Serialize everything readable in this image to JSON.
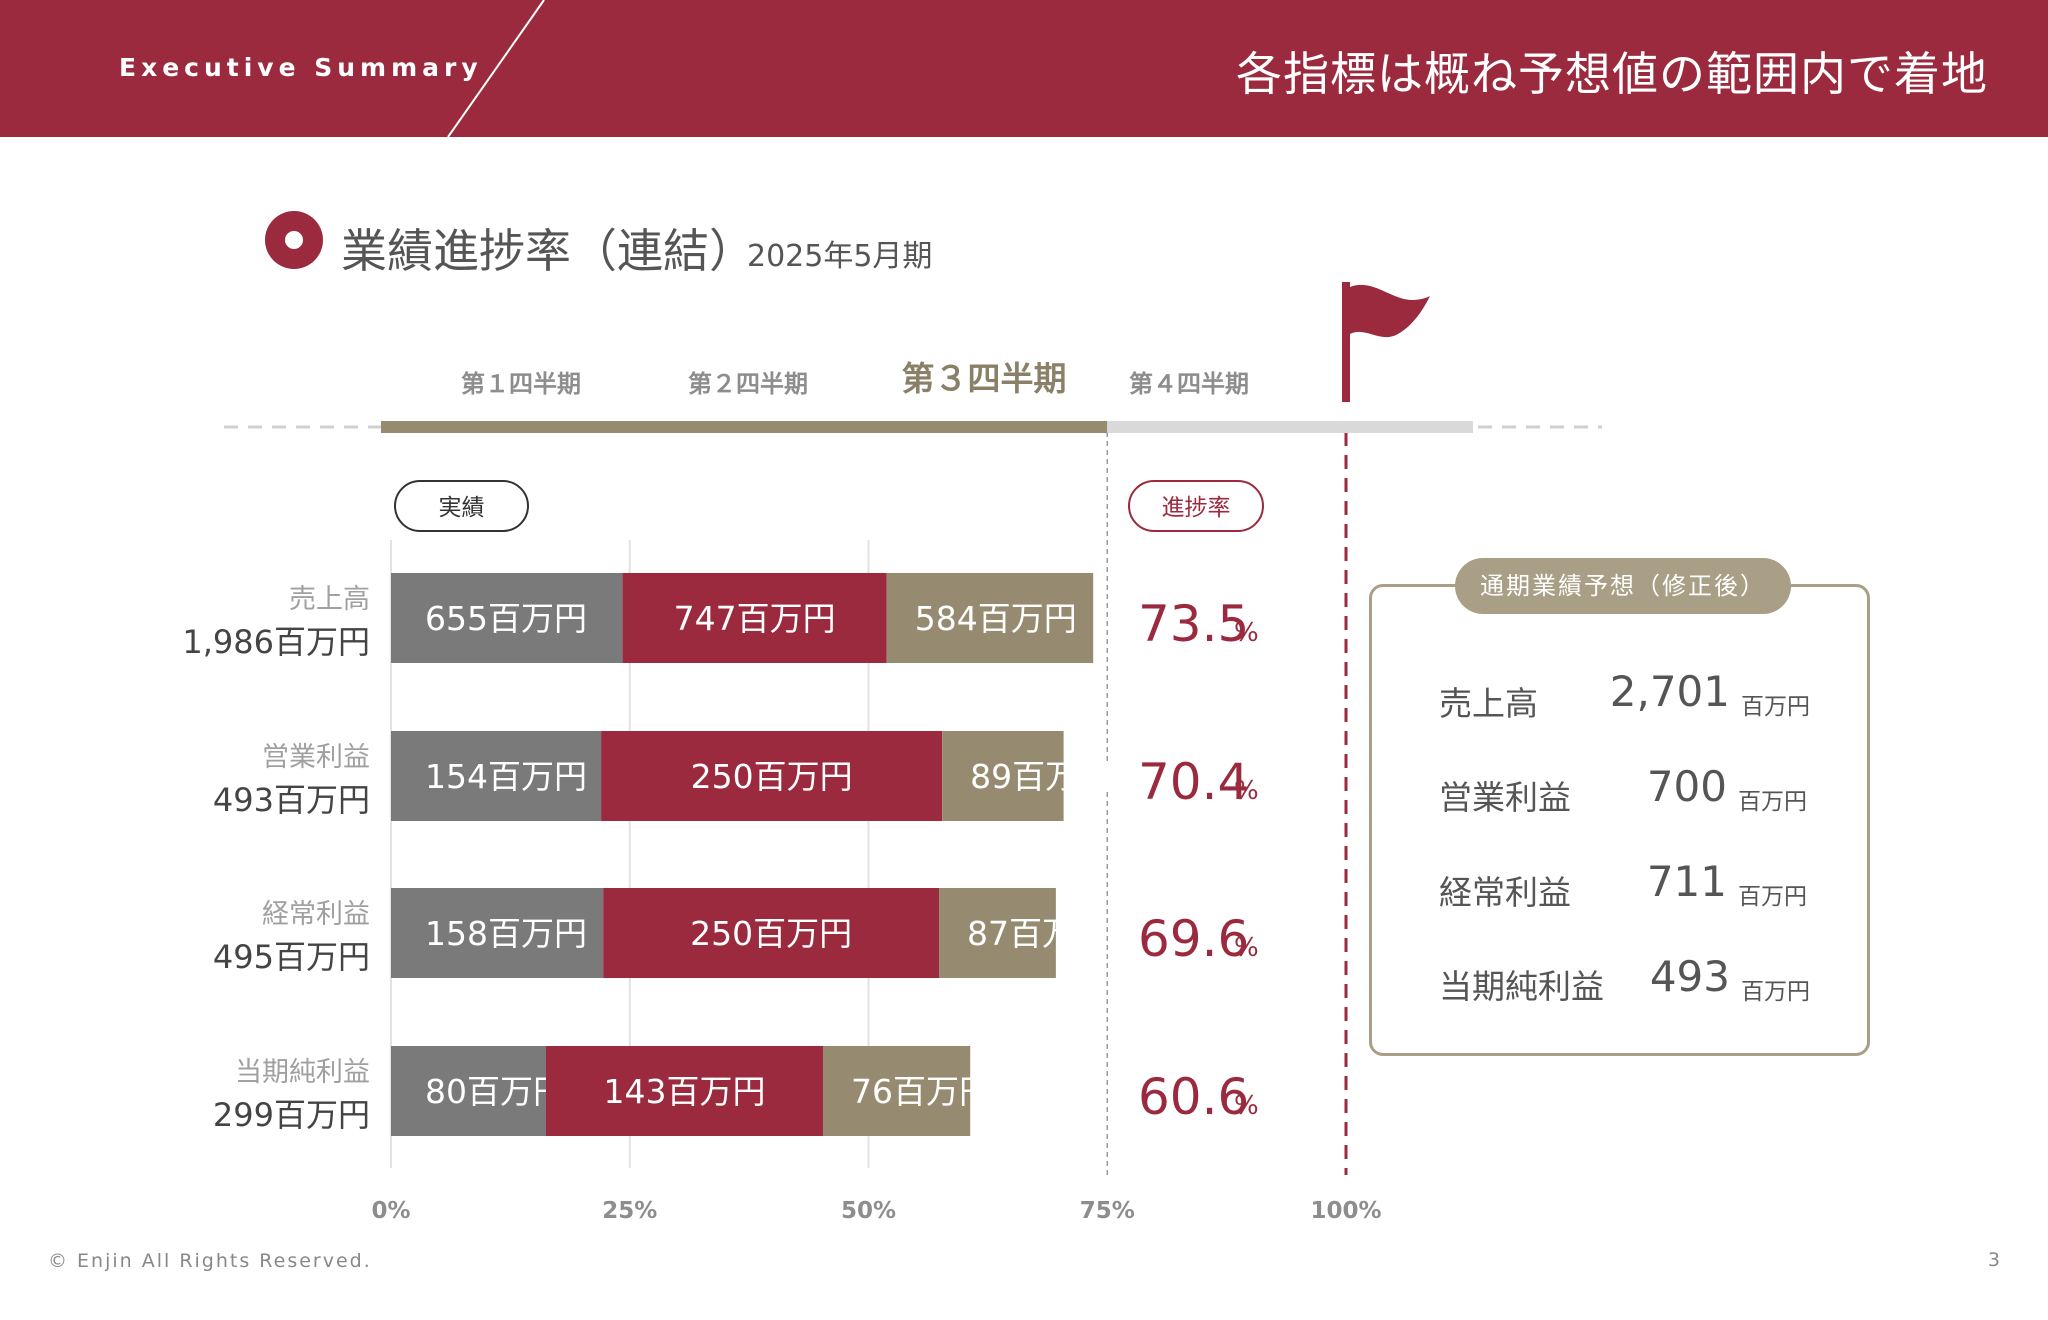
{
  "header": {
    "section": "Executive Summary",
    "headline": "各指標は概ね予想値の範囲内で着地"
  },
  "section_title": {
    "title": "業績進捗率（連結）",
    "period": "2025年5月期"
  },
  "colors": {
    "brand": "#9b2a3e",
    "q1": "#7a7a7a",
    "q2": "#9b2a3e",
    "q3": "#968b71",
    "timeline_remaining": "#d9d9d9"
  },
  "chart_data": {
    "type": "bar",
    "orientation": "horizontal",
    "stacked": true,
    "quarters": [
      "第１四半期",
      "第２四半期",
      "第３四半期",
      "第４四半期"
    ],
    "current_quarter_index": 2,
    "actual_tag": "実績",
    "progress_tag": "進捗率",
    "unit": "百万円",
    "categories": [
      {
        "name": "売上高",
        "total": "1,986百万円",
        "progress": "73.5",
        "values": [
          655,
          747,
          584
        ],
        "target": 2701
      },
      {
        "name": "営業利益",
        "total": "493百万円",
        "progress": "70.4",
        "values": [
          154,
          250,
          89
        ],
        "target": 700
      },
      {
        "name": "経常利益",
        "total": "495百万円",
        "progress": "69.6",
        "values": [
          158,
          250,
          87
        ],
        "target": 711
      },
      {
        "name": "当期純利益",
        "total": "299百万円",
        "progress": "60.6",
        "values": [
          80,
          143,
          76
        ],
        "target": 493
      }
    ],
    "series": [
      {
        "name": "第１四半期"
      },
      {
        "name": "第２四半期"
      },
      {
        "name": "第３四半期"
      }
    ],
    "xticks": [
      "0%",
      "25%",
      "50%",
      "75%",
      "100%"
    ],
    "xlim": [
      0,
      100
    ],
    "percent_sign": "%"
  },
  "forecast": {
    "title": "通期業績予想（修正後）",
    "rows": [
      {
        "label": "売上高",
        "value": "2,701",
        "unit": "百万円"
      },
      {
        "label": "営業利益",
        "value": "700",
        "unit": "百万円"
      },
      {
        "label": "経常利益",
        "value": "711",
        "unit": "百万円"
      },
      {
        "label": "当期純利益",
        "value": "493",
        "unit": "百万円"
      }
    ]
  },
  "footer": {
    "copyright": "© Enjin All Rights Reserved.",
    "page": "3"
  }
}
